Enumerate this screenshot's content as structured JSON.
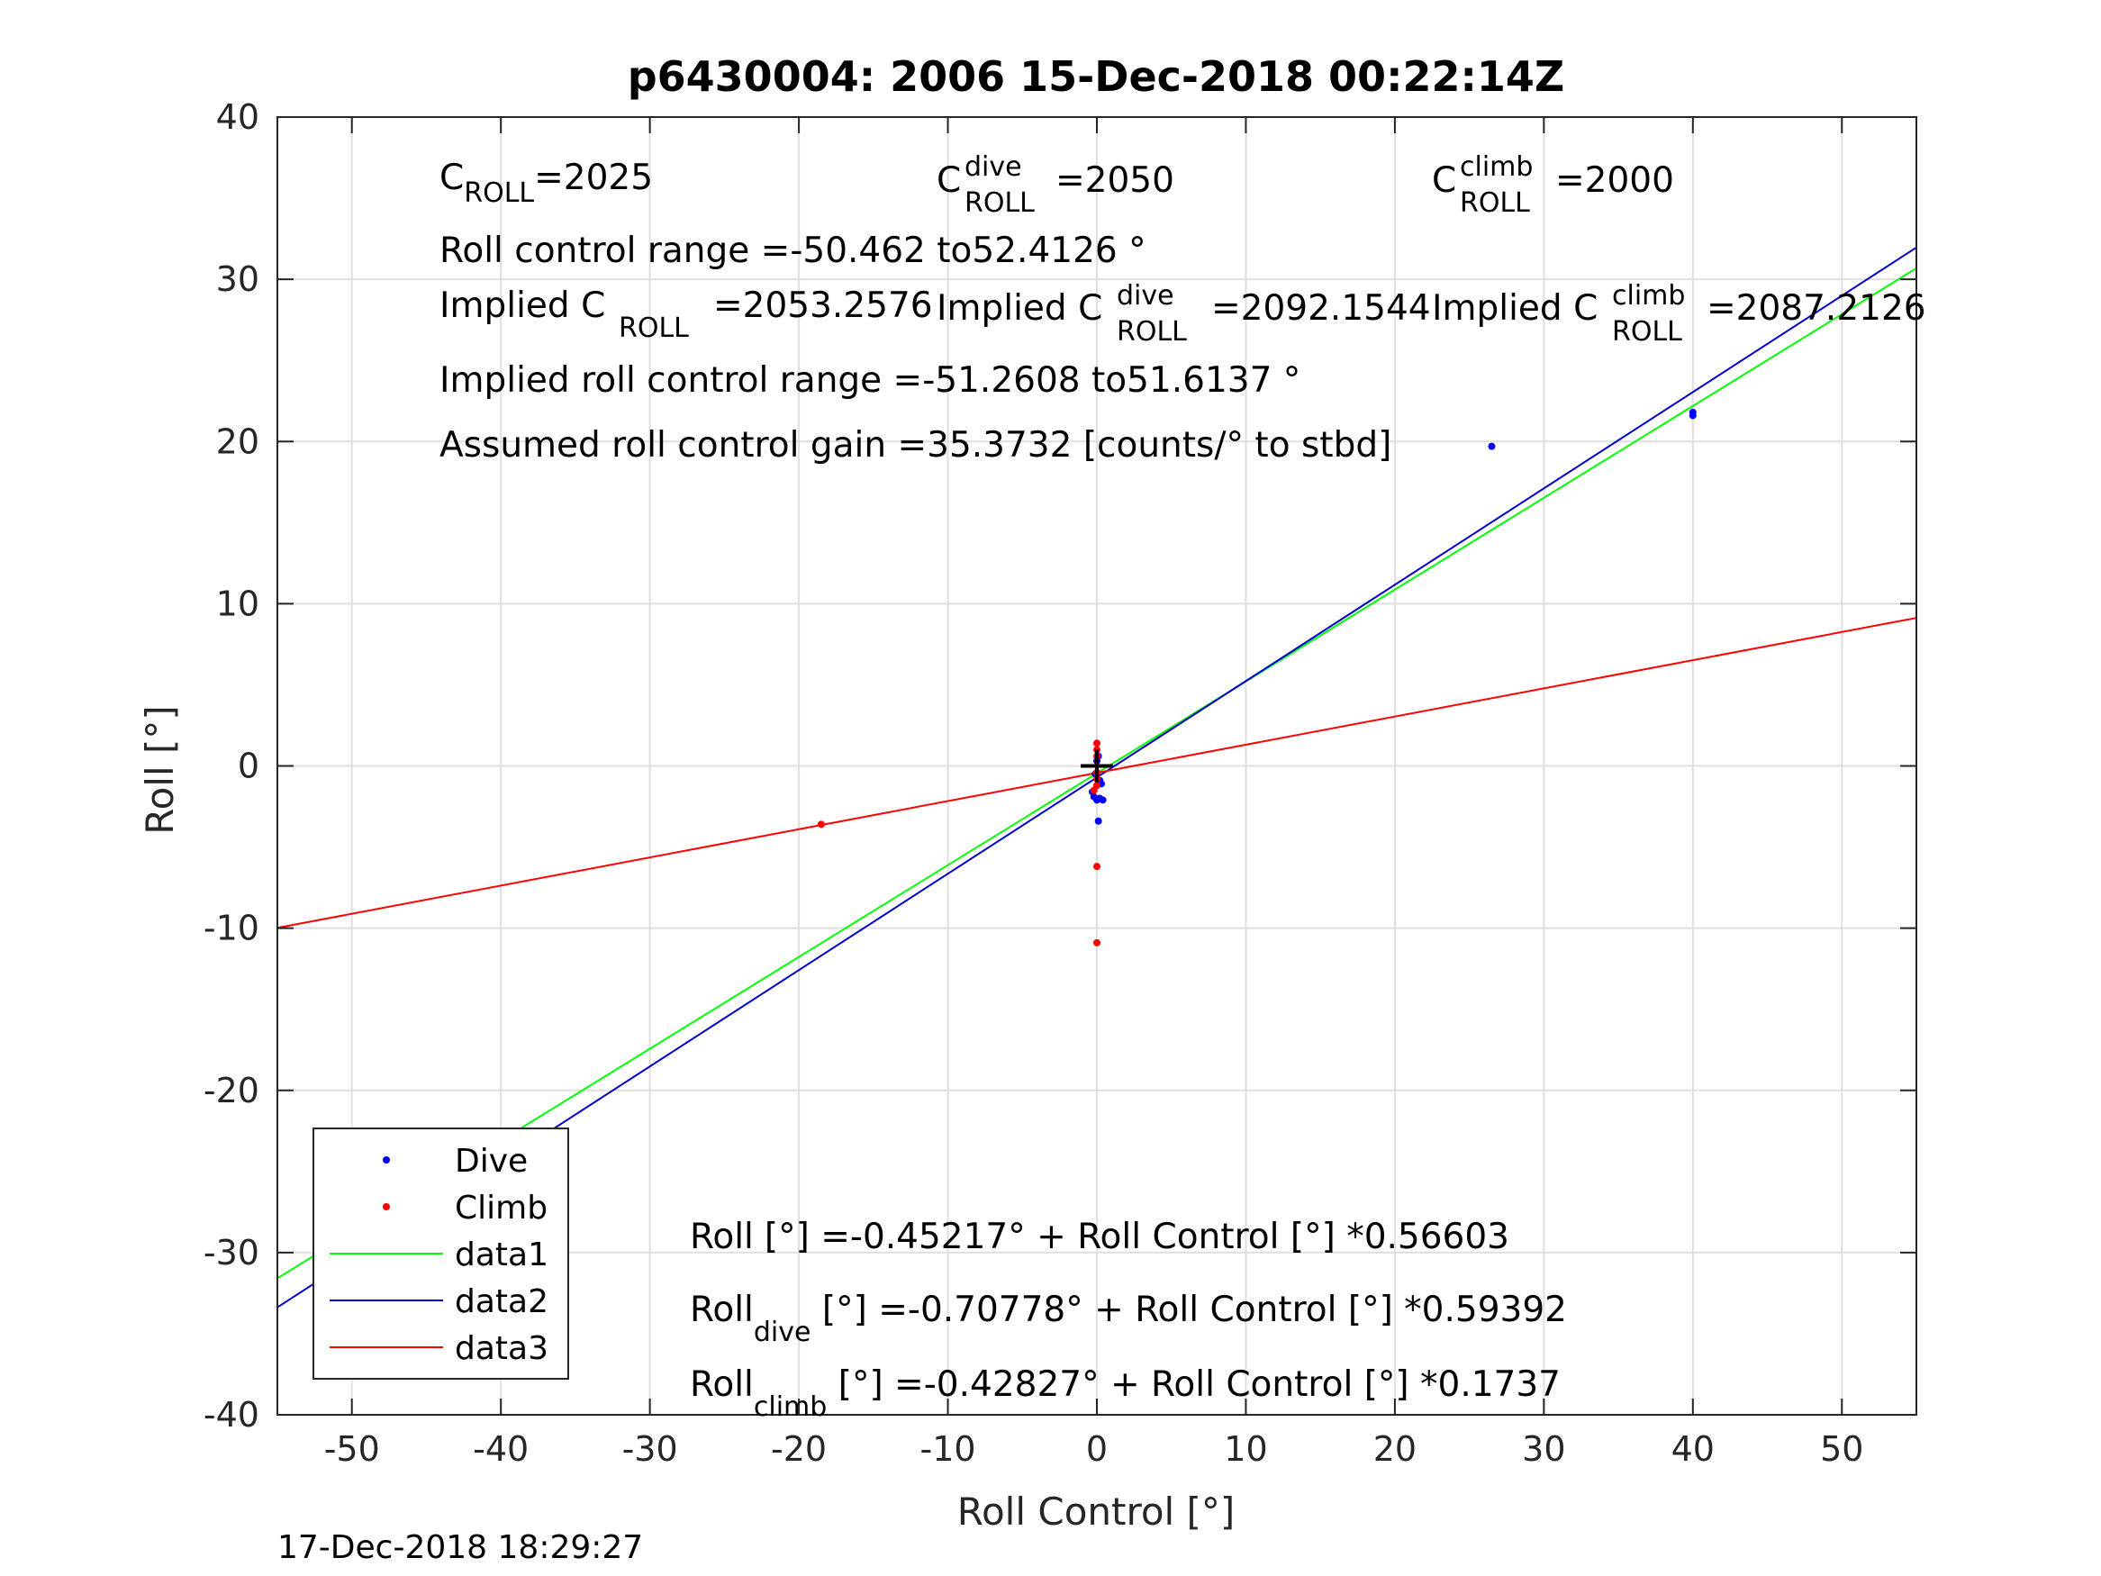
{
  "chart_data": {
    "type": "scatter",
    "title": "p6430004:  2006 15-Dec-2018 00:22:14Z",
    "xlabel": "Roll Control [°]",
    "ylabel": "Roll [°]",
    "xlim": [
      -55,
      55
    ],
    "ylim": [
      -40,
      40
    ],
    "xticks": [
      "-50",
      "-40",
      "-30",
      "-20",
      "-10",
      "0",
      "10",
      "20",
      "30",
      "40",
      "50"
    ],
    "yticks": [
      "-40",
      "-30",
      "-20",
      "-10",
      "0",
      "10",
      "20",
      "30",
      "40"
    ],
    "grid": true,
    "legend_placement": "bottom-left",
    "series": [
      {
        "name": "Dive",
        "kind": "points",
        "color": "#0000ff",
        "points": [
          [
            -40,
            -23.6
          ],
          [
            26.5,
            19.7
          ],
          [
            40,
            21.6
          ],
          [
            40,
            21.8
          ],
          [
            -0.3,
            -1.6
          ],
          [
            -0.2,
            -1.9
          ],
          [
            0,
            -2.1
          ],
          [
            0.2,
            -2.0
          ],
          [
            0.4,
            -2.1
          ],
          [
            0.1,
            -3.4
          ],
          [
            0.2,
            -0.9
          ],
          [
            0.3,
            -1.1
          ],
          [
            -0.1,
            -0.5
          ],
          [
            0,
            0.3
          ],
          [
            0.1,
            0.6
          ]
        ]
      },
      {
        "name": "Climb",
        "kind": "points",
        "color": "#ff0000",
        "points": [
          [
            -18.5,
            -3.6
          ],
          [
            0,
            1.4
          ],
          [
            0,
            1.0
          ],
          [
            0,
            0.6
          ],
          [
            0,
            -0.4
          ],
          [
            0,
            -0.8
          ],
          [
            0,
            -1.2
          ],
          [
            -0.2,
            -1.5
          ],
          [
            0,
            -6.2
          ],
          [
            0,
            -10.9
          ]
        ]
      },
      {
        "name": "data1",
        "kind": "line",
        "color": "#00ff00",
        "intercept": -0.45217,
        "slope": 0.56603
      },
      {
        "name": "data2",
        "kind": "line",
        "color": "#0000cc",
        "intercept": -0.70778,
        "slope": 0.59392
      },
      {
        "name": "data3",
        "kind": "line",
        "color": "#ff0000",
        "intercept": -0.42827,
        "slope": 0.1737
      }
    ],
    "center_marker": {
      "x": 0,
      "y": 0,
      "symbol": "+",
      "color": "#000000"
    }
  },
  "annotations": {
    "c_roll": {
      "base": "C",
      "sub": "ROLL",
      "value": "=2025"
    },
    "c_roll_dive": {
      "base": "C",
      "sup": "dive",
      "sub": "ROLL",
      "value": "=2050"
    },
    "c_roll_climb": {
      "base": "C",
      "sup": "climb",
      "sub": "ROLL",
      "value": "=2000"
    },
    "range": "Roll control range =-50.462 to52.4126 °",
    "implied_c_roll": {
      "prefix": "Implied C",
      "sub": "ROLL",
      "value": "=2053.2576"
    },
    "implied_c_roll_dive": {
      "prefix": "Implied C",
      "sup": "dive",
      "sub": "ROLL",
      "value": "=2092.1544"
    },
    "implied_c_roll_climb": {
      "prefix": "Implied C",
      "sup": "climb",
      "sub": "ROLL",
      "value": "=2087.2126"
    },
    "implied_range": "Implied roll control range =-51.2608 to51.6137 °",
    "gain": "Assumed roll control gain =35.3732 [counts/° to stbd]",
    "eq_all": {
      "base": "Roll",
      "rest": "[°] =-0.45217° + Roll Control [°] *0.56603"
    },
    "eq_dive": {
      "base": "Roll",
      "sub": "dive",
      "rest": " [°] =-0.70778° + Roll Control [°] *0.59392"
    },
    "eq_climb": {
      "base": "Roll",
      "sub": "climb",
      "rest": " [°] =-0.42827° + Roll Control [°] *0.1737"
    }
  },
  "footer": {
    "timestamp": "17-Dec-2018 18:29:27"
  }
}
